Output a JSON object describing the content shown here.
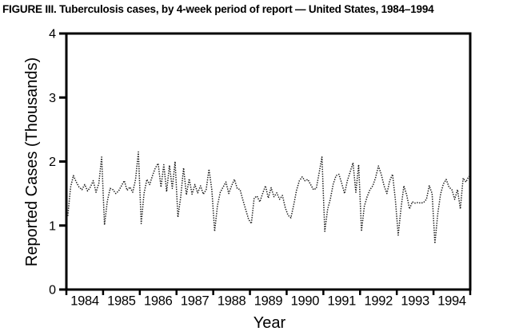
{
  "title": "FIGURE III. Tuberculosis cases, by 4-week period of report — United States, 1984–1994",
  "chart_data": {
    "type": "line",
    "title": "FIGURE III. Tuberculosis cases, by 4-week period of report — United States, 1984–1994",
    "xlabel": "Year",
    "ylabel": "Reported Cases (Thousands)",
    "ylim": [
      0,
      4
    ],
    "yticks": [
      "0",
      "1",
      "2",
      "3",
      "4"
    ],
    "year_labels": [
      "1984",
      "1985",
      "1986",
      "1987",
      "1988",
      "1989",
      "1990",
      "1991",
      "1992",
      "1993",
      "1994"
    ],
    "periods_per_year": 13,
    "grid": false,
    "legend_position": "none",
    "line_style": "dotted",
    "line_color": "#161616",
    "axis_color": "#000000",
    "background_color": "#ffffff",
    "series": [
      {
        "name": "Reported tuberculosis cases per 4-week period (thousands)",
        "values": [
          1.15,
          1.6,
          1.78,
          1.68,
          1.6,
          1.56,
          1.64,
          1.54,
          1.6,
          1.7,
          1.52,
          1.66,
          2.07,
          1.01,
          1.38,
          1.58,
          1.56,
          1.5,
          1.54,
          1.62,
          1.7,
          1.55,
          1.6,
          1.52,
          1.72,
          2.15,
          1.03,
          1.5,
          1.72,
          1.64,
          1.78,
          1.9,
          1.97,
          1.6,
          1.95,
          1.53,
          1.94,
          1.58,
          2.0,
          1.13,
          1.45,
          1.9,
          1.48,
          1.73,
          1.49,
          1.64,
          1.51,
          1.62,
          1.49,
          1.56,
          1.88,
          1.56,
          0.91,
          1.31,
          1.52,
          1.6,
          1.68,
          1.5,
          1.62,
          1.72,
          1.58,
          1.56,
          1.4,
          1.25,
          1.1,
          1.03,
          1.43,
          1.46,
          1.37,
          1.5,
          1.62,
          1.43,
          1.59,
          1.45,
          1.51,
          1.41,
          1.47,
          1.28,
          1.16,
          1.12,
          1.32,
          1.55,
          1.7,
          1.76,
          1.7,
          1.72,
          1.64,
          1.56,
          1.58,
          1.82,
          2.07,
          0.91,
          1.25,
          1.42,
          1.65,
          1.78,
          1.8,
          1.66,
          1.5,
          1.7,
          1.84,
          1.98,
          1.52,
          1.95,
          0.91,
          1.3,
          1.45,
          1.56,
          1.62,
          1.75,
          1.93,
          1.8,
          1.62,
          1.5,
          1.7,
          1.8,
          1.4,
          0.85,
          1.27,
          1.62,
          1.48,
          1.26,
          1.37,
          1.35,
          1.36,
          1.35,
          1.36,
          1.41,
          1.62,
          1.5,
          0.72,
          1.18,
          1.49,
          1.65,
          1.72,
          1.6,
          1.56,
          1.41,
          1.56,
          1.26,
          1.74,
          1.68,
          1.77
        ]
      }
    ]
  }
}
